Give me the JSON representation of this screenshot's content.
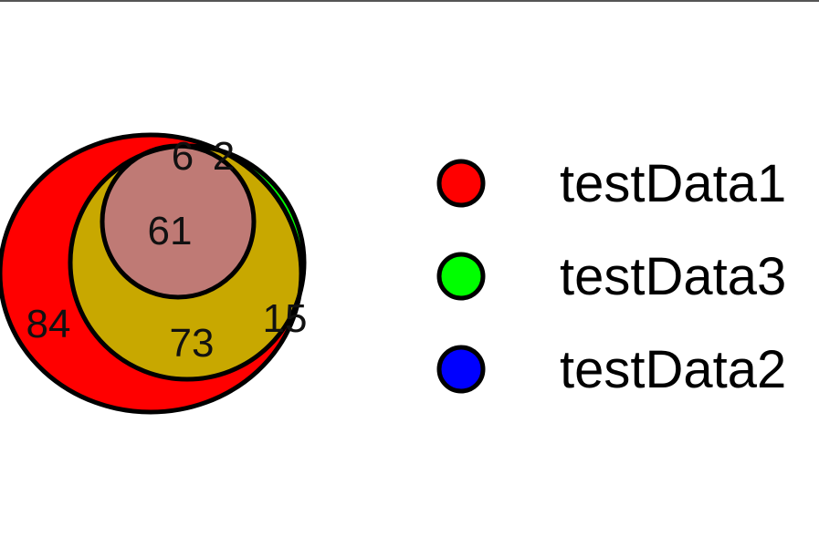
{
  "chart_data": {
    "type": "venn",
    "sets": [
      {
        "name": "testData1",
        "color": "#ff0000"
      },
      {
        "name": "testData3",
        "color": "#00ff00"
      },
      {
        "name": "testData2",
        "color": "#0000ff"
      }
    ],
    "regions": [
      {
        "sets": [
          "testData1"
        ],
        "label": "84",
        "color": "#ff0000"
      },
      {
        "sets": [
          "testData1",
          "testData3"
        ],
        "label": "73",
        "color": "#c8a800"
      },
      {
        "sets": [
          "testData3"
        ],
        "label": "15",
        "color": "#00ff00"
      },
      {
        "sets": [
          "testData1",
          "testData2",
          "testData3"
        ],
        "label": "61",
        "color": "#bf7a75"
      },
      {
        "sets": [
          "testData1",
          "testData2"
        ],
        "label": "6",
        "color": "#a000a0"
      },
      {
        "sets": [
          "testData2"
        ],
        "label": "2",
        "color": "#0000ff"
      }
    ]
  },
  "legend": {
    "items": [
      {
        "label": "testData1",
        "color": "#ff0000"
      },
      {
        "label": "testData3",
        "color": "#00ff00"
      },
      {
        "label": "testData2",
        "color": "#0000ff"
      }
    ]
  }
}
